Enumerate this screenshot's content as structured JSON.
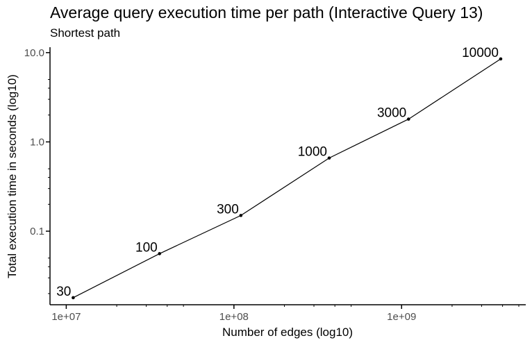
{
  "chart_data": {
    "type": "line",
    "title": "Average query execution time per path (Interactive Query 13)",
    "subtitle": "Shortest path",
    "xlabel": "Number of edges (log10)",
    "ylabel": "Total execution time in seconds (log10)",
    "x_scale": "log10",
    "y_scale": "log10",
    "xlim": [
      8000000,
      5500000000
    ],
    "ylim": [
      0.015,
      11.5
    ],
    "x_ticks": [
      {
        "value": 10000000,
        "label": "1e+07"
      },
      {
        "value": 100000000,
        "label": "1e+08"
      },
      {
        "value": 1000000000,
        "label": "1e+09"
      }
    ],
    "y_ticks": [
      {
        "value": 0.1,
        "label": "0.1"
      },
      {
        "value": 1,
        "label": "1.0"
      },
      {
        "value": 10,
        "label": "10.0"
      }
    ],
    "grid": false,
    "legend": "none",
    "series": [
      {
        "points": [
          {
            "x": 11000000,
            "y": 0.018,
            "label": "30"
          },
          {
            "x": 36000000,
            "y": 0.056,
            "label": "100"
          },
          {
            "x": 110000000,
            "y": 0.15,
            "label": "300"
          },
          {
            "x": 370000000,
            "y": 0.66,
            "label": "1000"
          },
          {
            "x": 1100000000,
            "y": 1.8,
            "label": "3000"
          },
          {
            "x": 3900000000,
            "y": 8.5,
            "label": "10000"
          }
        ]
      }
    ]
  }
}
